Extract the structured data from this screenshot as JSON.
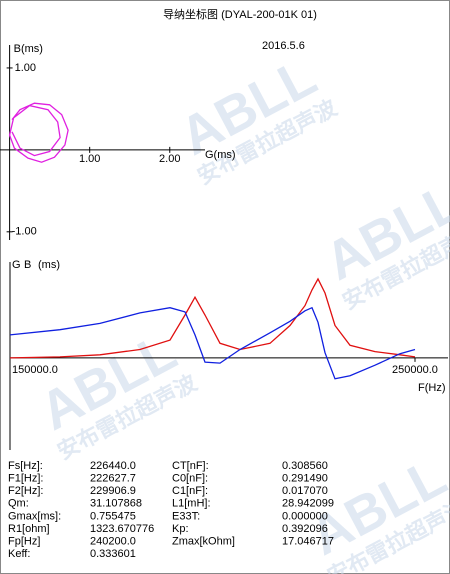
{
  "title": "导纳坐标图 (DYAL-200-01K     01)",
  "date": "2016.5.6",
  "watermark": {
    "brand": "ABLL",
    "text": "安布雷拉超声波"
  },
  "chart_data": [
    {
      "type": "line",
      "xlabel": "G(ms)",
      "ylabel": "B(ms)",
      "color": "#e020e0",
      "xlim": [
        -0.12,
        2.44
      ],
      "ylim": [
        -1.1,
        1.28
      ],
      "xticks": [
        {
          "value": 1,
          "label": "1.00"
        },
        {
          "value": 2,
          "label": "2.00"
        }
      ],
      "yticks": [
        {
          "value": 1,
          "label": "1.00"
        },
        {
          "value": -1,
          "label": "-1.00"
        }
      ],
      "x": [
        0.03,
        0.13,
        0.31,
        0.5,
        0.65,
        0.73,
        0.69,
        0.56,
        0.4,
        0.23,
        0.06,
        0.0,
        0.05,
        0.25,
        0.48,
        0.6,
        0.63,
        0.5,
        0.31,
        0.13,
        0.03
      ],
      "values": [
        0.37,
        0.49,
        0.57,
        0.55,
        0.43,
        0.24,
        0.06,
        -0.09,
        -0.15,
        -0.1,
        0.02,
        0.18,
        0.39,
        0.54,
        0.49,
        0.34,
        0.15,
        -0.02,
        -0.07,
        0.02,
        0.22
      ]
    },
    {
      "type": "line",
      "xlabel": "F(Hz)",
      "ylabel": "(ms)",
      "xlim": [
        150000,
        250000
      ],
      "ylim": [
        -0.88,
        0.84
      ],
      "xticks": [
        {
          "value": 150000,
          "label": "150000.0"
        },
        {
          "value": 250000,
          "label": "250000.0"
        }
      ],
      "x": [
        150000,
        162346,
        172222,
        182099,
        189506,
        193210,
        195679,
        198148,
        201852,
        206790,
        214198,
        219136,
        222840,
        224568,
        226049,
        227778,
        230247,
        233951,
        240123,
        246296,
        250000
      ],
      "series": [
        {
          "name": "G",
          "color": "#e01010",
          "values": [
            0,
            0.01,
            0.03,
            0.08,
            0.17,
            0.41,
            0.58,
            0.41,
            0.14,
            0.08,
            0.14,
            0.31,
            0.5,
            0.65,
            0.755,
            0.62,
            0.31,
            0.12,
            0.06,
            0.03,
            0.01
          ]
        },
        {
          "name": "B",
          "color": "#1020e0",
          "values": [
            0.22,
            0.27,
            0.33,
            0.43,
            0.48,
            0.44,
            0.22,
            -0.04,
            -0.05,
            0.08,
            0.24,
            0.35,
            0.45,
            0.48,
            0.34,
            0.05,
            -0.2,
            -0.17,
            -0.07,
            0.04,
            0.08
          ]
        }
      ]
    }
  ],
  "parameters": [
    [
      [
        "Fs[Hz]:",
        "226440.0"
      ],
      [
        "CT[nF]:",
        "0.308560"
      ]
    ],
    [
      [
        "F1[Hz]:",
        "222627.7"
      ],
      [
        "C0[nF]:",
        "0.291490"
      ]
    ],
    [
      [
        "F2[Hz]:",
        "229906.9"
      ],
      [
        "C1[nF]:",
        "0.017070"
      ]
    ],
    [
      [
        "Qm:",
        "31.107868"
      ],
      [
        "L1[mH]:",
        "28.942099"
      ]
    ],
    [
      [
        "Gmax[ms]:",
        "0.755475"
      ],
      [
        "E33T:",
        "0.000000"
      ]
    ],
    [
      [
        "R1[ohm]",
        "1323.670776"
      ],
      [
        "Kp:",
        "0.392096"
      ]
    ],
    [
      [
        "Fp[Hz]",
        "240200.0"
      ],
      [
        "Zmax[kOhm]",
        "17.046717"
      ]
    ],
    [
      [
        "Keff:",
        "0.333601"
      ]
    ]
  ]
}
